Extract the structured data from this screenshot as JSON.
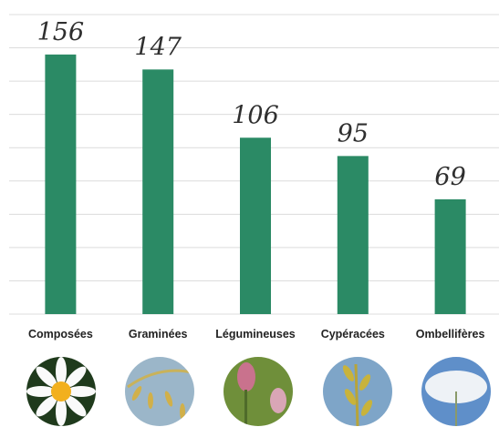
{
  "chart_data": {
    "type": "bar",
    "categories": [
      "Composées",
      "Graminées",
      "Légumineuses",
      "Cypéracées",
      "Ombellifères"
    ],
    "values": [
      156,
      147,
      106,
      95,
      69
    ],
    "color": "#2b8a65",
    "ylim": [
      0,
      180
    ],
    "yticks": [
      0,
      20,
      40,
      60,
      80,
      100,
      120,
      140,
      160,
      180
    ],
    "grid": true
  }
}
